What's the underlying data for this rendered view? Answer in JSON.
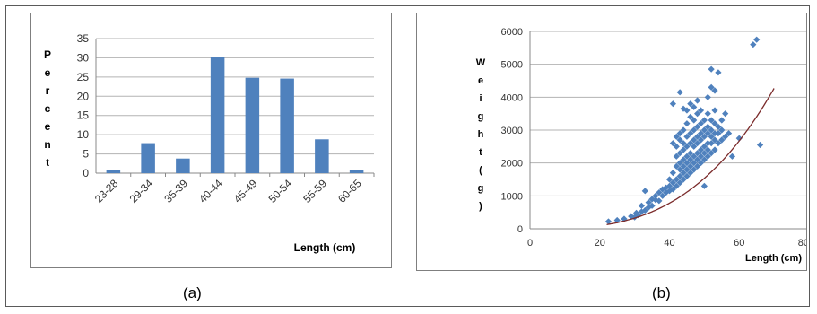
{
  "captions": {
    "a": "(a)",
    "b": "(b)"
  },
  "chart_data": [
    {
      "type": "bar",
      "categories": [
        "23-28",
        "29-34",
        "35-39",
        "40-44",
        "45-49",
        "50-54",
        "55-59",
        "60-65"
      ],
      "values": [
        0.8,
        7.8,
        3.8,
        30.2,
        24.8,
        24.6,
        8.8,
        0.8
      ],
      "ylim": [
        0,
        35
      ],
      "yticks": [
        0,
        5,
        10,
        15,
        20,
        25,
        30,
        35
      ],
      "ylabel": "Percent",
      "xlabel": "Length (cm)",
      "grid": true,
      "color": "#4f81bd"
    },
    {
      "type": "scatter",
      "xlim": [
        0,
        80
      ],
      "ylim": [
        0,
        6000
      ],
      "xticks": [
        0,
        20,
        40,
        60,
        80
      ],
      "yticks": [
        0,
        1000,
        2000,
        3000,
        4000,
        5000,
        6000
      ],
      "ylabel": "Weight (g)",
      "xlabel": "Length (cm)",
      "grid": true,
      "marker_color": "#4f81bd",
      "trendline_color": "#7b2b2b",
      "trendline": {
        "type": "power",
        "a": 0.0105,
        "b": 3.04
      },
      "points": [
        [
          22.5,
          220
        ],
        [
          25,
          260
        ],
        [
          27,
          300
        ],
        [
          29,
          380
        ],
        [
          30,
          350
        ],
        [
          30.5,
          480
        ],
        [
          31,
          420
        ],
        [
          32,
          520
        ],
        [
          32,
          700
        ],
        [
          33,
          560
        ],
        [
          33,
          1150
        ],
        [
          34,
          650
        ],
        [
          34,
          800
        ],
        [
          35,
          700
        ],
        [
          35,
          900
        ],
        [
          36,
          880
        ],
        [
          36,
          1000
        ],
        [
          37,
          850
        ],
        [
          37,
          1100
        ],
        [
          38,
          1000
        ],
        [
          38,
          1200
        ],
        [
          39,
          1100
        ],
        [
          39,
          1250
        ],
        [
          40,
          1150
        ],
        [
          40,
          1300
        ],
        [
          40,
          1500
        ],
        [
          41,
          1200
        ],
        [
          41,
          1400
        ],
        [
          41,
          1700
        ],
        [
          41,
          2600
        ],
        [
          41,
          3800
        ],
        [
          42,
          1300
        ],
        [
          42,
          1500
        ],
        [
          42,
          1900
        ],
        [
          42,
          2200
        ],
        [
          42,
          2800
        ],
        [
          42,
          2500
        ],
        [
          43,
          1400
        ],
        [
          43,
          1600
        ],
        [
          43,
          1800
        ],
        [
          43,
          2000
        ],
        [
          43,
          2300
        ],
        [
          43,
          2900
        ],
        [
          43,
          2700
        ],
        [
          43,
          4150
        ],
        [
          44,
          1500
        ],
        [
          44,
          1700
        ],
        [
          44,
          1900
        ],
        [
          44,
          2100
        ],
        [
          44,
          2400
        ],
        [
          44,
          2600
        ],
        [
          44,
          3000
        ],
        [
          44,
          3650
        ],
        [
          45,
          1600
        ],
        [
          45,
          1800
        ],
        [
          45,
          2000
        ],
        [
          45,
          2200
        ],
        [
          45,
          2500
        ],
        [
          45,
          2800
        ],
        [
          45,
          3200
        ],
        [
          45,
          3600
        ],
        [
          46,
          1700
        ],
        [
          46,
          1900
        ],
        [
          46,
          2100
        ],
        [
          46,
          2300
        ],
        [
          46,
          2600
        ],
        [
          46,
          2900
        ],
        [
          46,
          3400
        ],
        [
          46,
          3800
        ],
        [
          47,
          1800
        ],
        [
          47,
          2000
        ],
        [
          47,
          2200
        ],
        [
          47,
          2500
        ],
        [
          47,
          2700
        ],
        [
          47,
          3000
        ],
        [
          47,
          3300
        ],
        [
          47,
          3700
        ],
        [
          48,
          1900
        ],
        [
          48,
          2100
        ],
        [
          48,
          2300
        ],
        [
          48,
          2600
        ],
        [
          48,
          2800
        ],
        [
          48,
          3100
        ],
        [
          48,
          3500
        ],
        [
          48,
          3900
        ],
        [
          49,
          2000
        ],
        [
          49,
          2200
        ],
        [
          49,
          2400
        ],
        [
          49,
          2700
        ],
        [
          49,
          2900
        ],
        [
          49,
          3200
        ],
        [
          49,
          3600
        ],
        [
          50,
          1300
        ],
        [
          50,
          2100
        ],
        [
          50,
          2300
        ],
        [
          50,
          2500
        ],
        [
          50,
          2800
        ],
        [
          50,
          3000
        ],
        [
          50,
          3300
        ],
        [
          51,
          2200
        ],
        [
          51,
          2400
        ],
        [
          51,
          2600
        ],
        [
          51,
          2900
        ],
        [
          51,
          3100
        ],
        [
          51,
          3500
        ],
        [
          51,
          4000
        ],
        [
          52,
          2300
        ],
        [
          52,
          2600
        ],
        [
          52,
          2800
        ],
        [
          52,
          3000
        ],
        [
          52,
          3300
        ],
        [
          52,
          4300
        ],
        [
          52,
          4850
        ],
        [
          53,
          2400
        ],
        [
          53,
          2700
        ],
        [
          53,
          2900
        ],
        [
          53,
          3200
        ],
        [
          53,
          3600
        ],
        [
          53,
          4200
        ],
        [
          54,
          2600
        ],
        [
          54,
          2900
        ],
        [
          54,
          3100
        ],
        [
          54,
          4750
        ],
        [
          55,
          2700
        ],
        [
          55,
          3000
        ],
        [
          55,
          3300
        ],
        [
          56,
          2800
        ],
        [
          56,
          3500
        ],
        [
          57,
          2900
        ],
        [
          58,
          2200
        ],
        [
          60,
          2750
        ],
        [
          64,
          5600
        ],
        [
          65,
          5750
        ],
        [
          66,
          2550
        ]
      ]
    }
  ]
}
